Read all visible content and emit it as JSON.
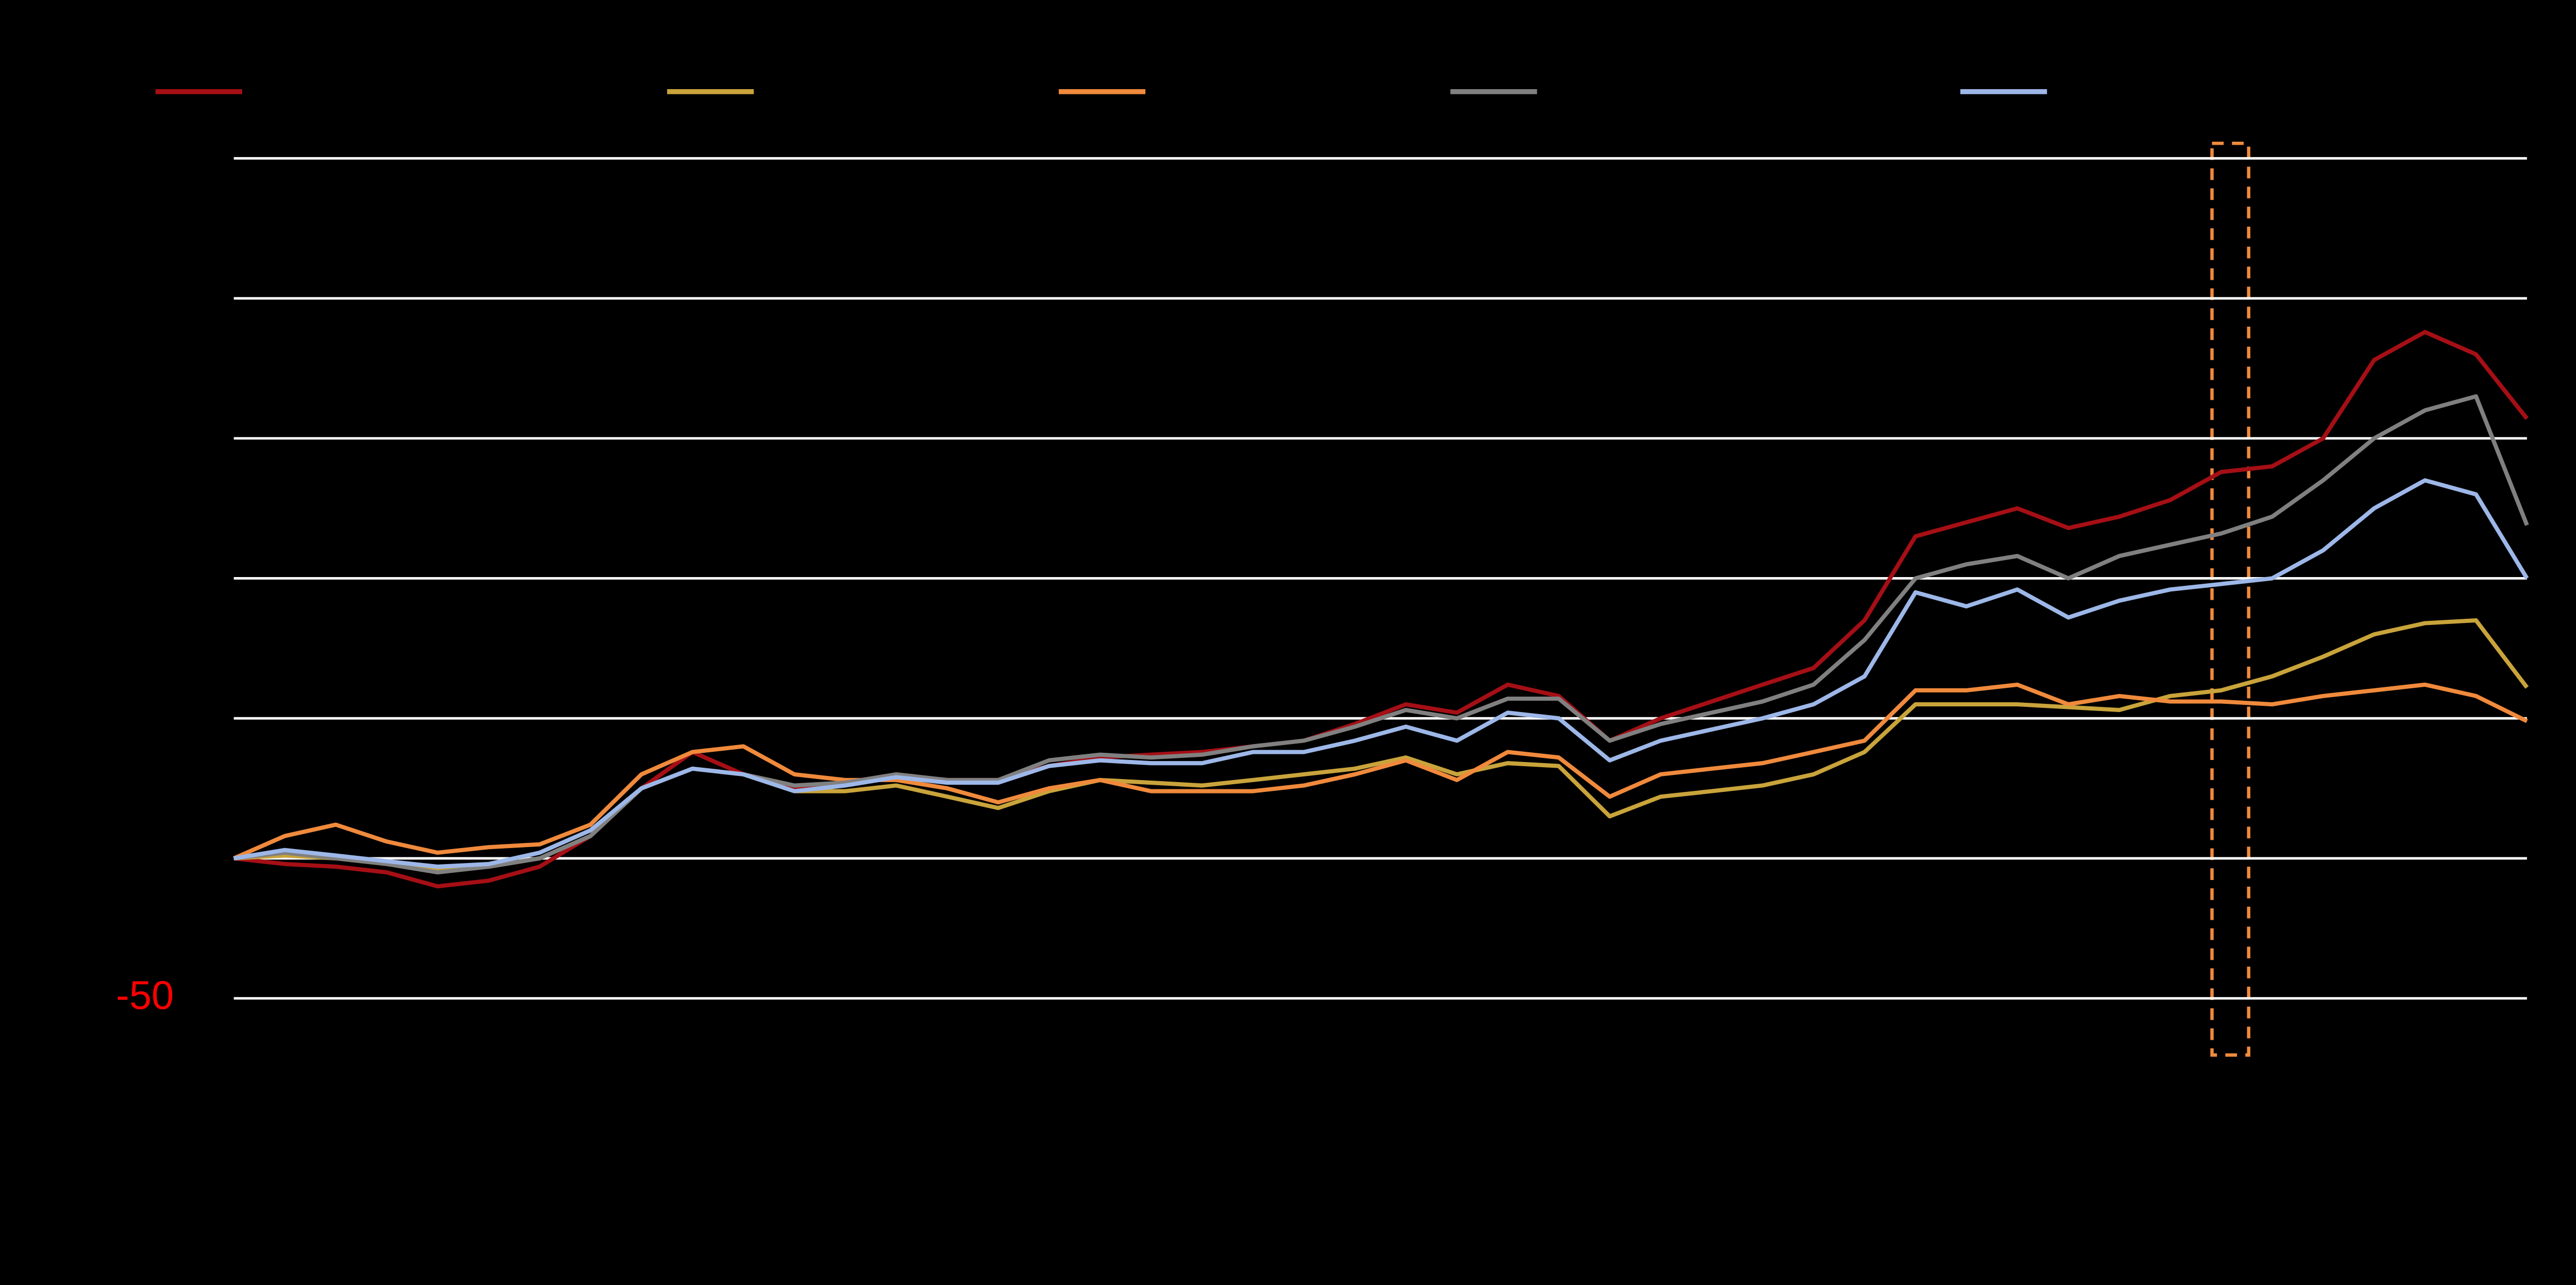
{
  "chart_data": {
    "type": "line",
    "background": "#000000",
    "grid": true,
    "ylim": [
      -50,
      250
    ],
    "yticks": [
      -50,
      0,
      50,
      100,
      150,
      200,
      250
    ],
    "ytick_label_colors": [
      "#ff0000",
      "#000000",
      "#000000",
      "#000000",
      "#000000",
      "#000000",
      "#000000"
    ],
    "legend": "top",
    "series": [
      {
        "color": "#a50f15",
        "values": [
          0,
          -2,
          -3,
          -5,
          -10,
          -8,
          -3,
          8,
          25,
          38,
          30,
          25,
          27,
          30,
          28,
          28,
          33,
          36,
          37,
          38,
          40,
          42,
          48,
          55,
          52,
          62,
          58,
          42,
          50,
          56,
          62,
          68,
          85,
          115,
          120,
          125,
          118,
          122,
          128,
          138,
          140,
          150,
          178,
          188,
          180,
          157
        ]
      },
      {
        "color": "#c9a43b",
        "values": [
          0,
          1,
          0,
          -2,
          -4,
          -3,
          0,
          8,
          25,
          32,
          30,
          24,
          24,
          26,
          22,
          18,
          24,
          28,
          27,
          26,
          28,
          30,
          32,
          36,
          30,
          34,
          33,
          15,
          22,
          24,
          26,
          30,
          38,
          55,
          55,
          55,
          54,
          53,
          58,
          60,
          65,
          72,
          80,
          84,
          85,
          61
        ]
      },
      {
        "color": "#f08a3c",
        "values": [
          0,
          8,
          12,
          6,
          2,
          4,
          5,
          12,
          30,
          38,
          40,
          30,
          28,
          28,
          25,
          20,
          25,
          28,
          24,
          24,
          24,
          26,
          30,
          35,
          28,
          38,
          36,
          22,
          30,
          32,
          34,
          38,
          42,
          60,
          60,
          62,
          55,
          58,
          56,
          56,
          55,
          58,
          60,
          62,
          58,
          49
        ]
      },
      {
        "color": "#808080",
        "values": [
          0,
          2,
          0,
          -2,
          -5,
          -3,
          0,
          8,
          25,
          32,
          30,
          26,
          27,
          30,
          28,
          28,
          35,
          37,
          36,
          37,
          40,
          42,
          47,
          53,
          50,
          57,
          57,
          42,
          48,
          52,
          56,
          62,
          78,
          100,
          105,
          108,
          100,
          108,
          112,
          116,
          122,
          135,
          150,
          160,
          165,
          119
        ]
      },
      {
        "color": "#9db7e8",
        "values": [
          0,
          3,
          1,
          -1,
          -3,
          -2,
          2,
          10,
          25,
          32,
          30,
          24,
          26,
          29,
          27,
          27,
          33,
          35,
          34,
          34,
          38,
          38,
          42,
          47,
          42,
          52,
          50,
          35,
          42,
          46,
          50,
          55,
          65,
          95,
          90,
          96,
          86,
          92,
          96,
          98,
          100,
          110,
          125,
          135,
          130,
          100
        ]
      }
    ]
  }
}
